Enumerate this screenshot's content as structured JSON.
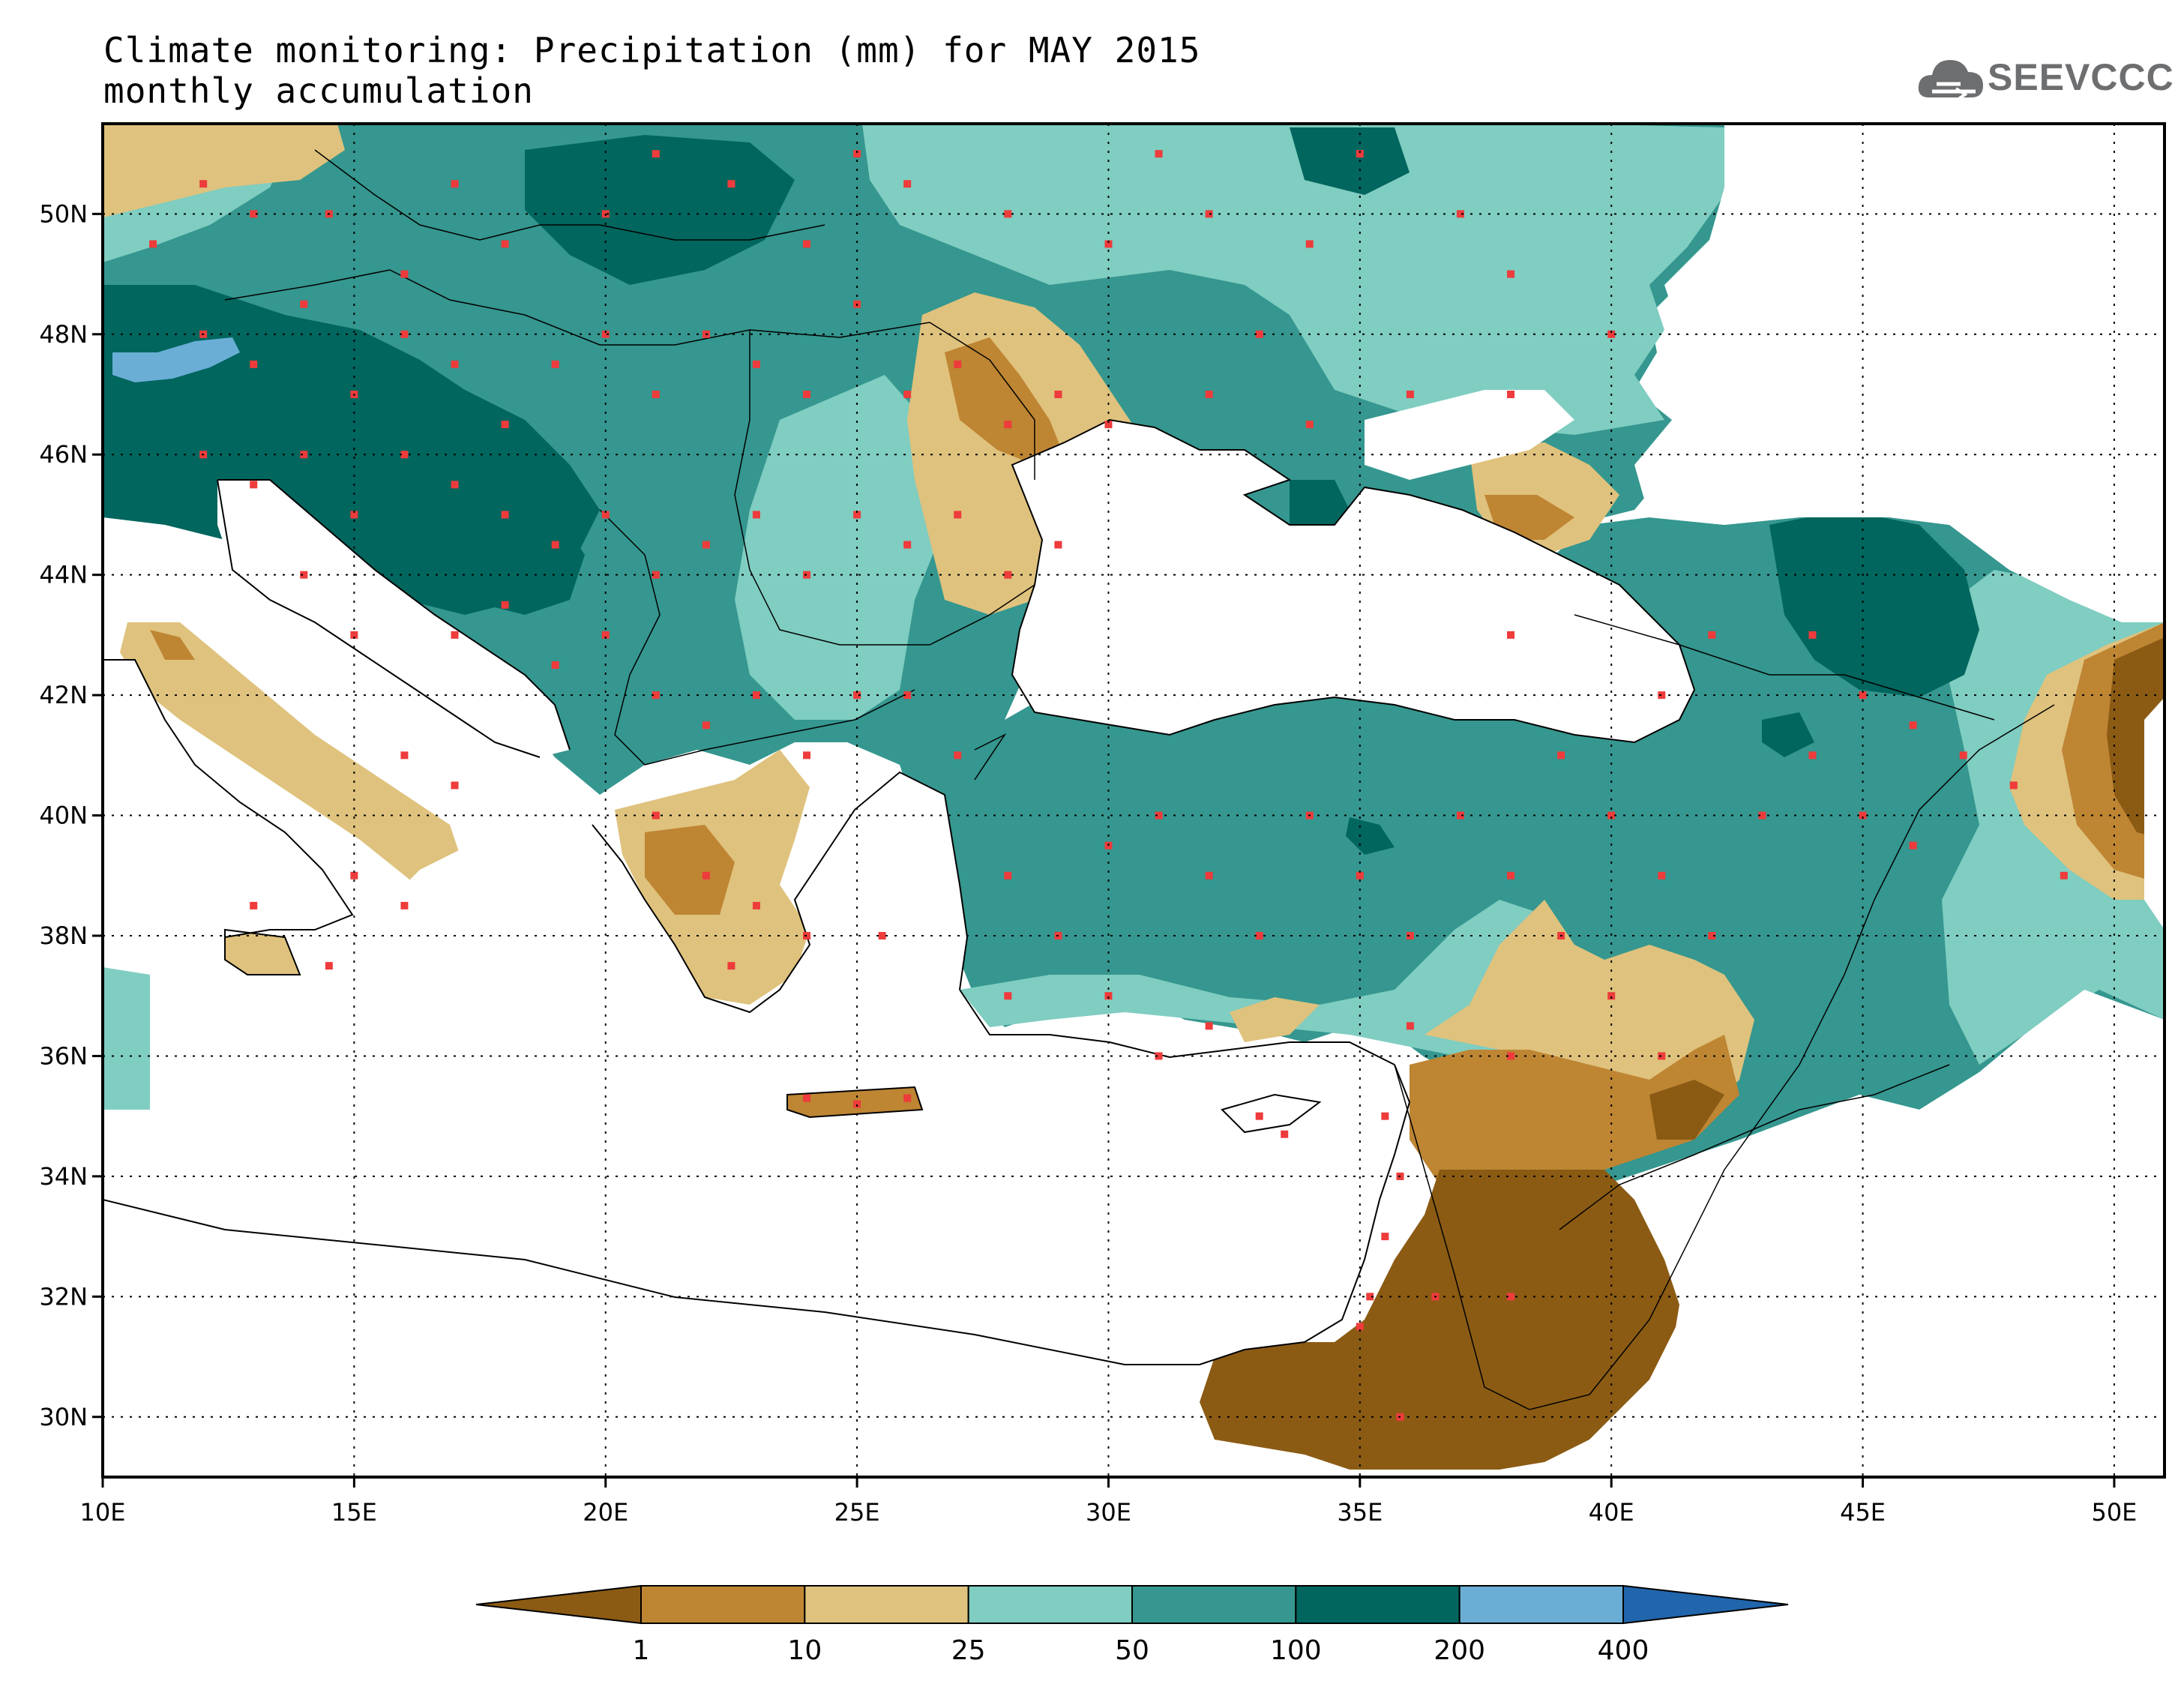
{
  "title": {
    "line1": "Climate monitoring: Precipitation (mm) for MAY 2015",
    "line2": "monthly accumulation"
  },
  "logo": {
    "text": "SEEVCCC",
    "color": "#6d6e70"
  },
  "map": {
    "lon_range": [
      10,
      51
    ],
    "lat_range": [
      29,
      51.5
    ],
    "lon_ticks": [
      "10E",
      "15E",
      "20E",
      "25E",
      "30E",
      "35E",
      "40E",
      "45E",
      "50E"
    ],
    "lat_ticks": [
      "30N",
      "32N",
      "34N",
      "36N",
      "38N",
      "40N",
      "42N",
      "44N",
      "46N",
      "48N",
      "50N"
    ],
    "grid": "dotted",
    "station_color": "#ee3b3b"
  },
  "colorbar": {
    "labels": [
      "1",
      "10",
      "25",
      "50",
      "100",
      "200",
      "400"
    ],
    "colors": [
      "#8b5b14",
      "#be8533",
      "#dfc27d",
      "#80cdc1",
      "#35978f",
      "#01665e",
      "#6aaed6",
      "#2166ac"
    ]
  }
}
